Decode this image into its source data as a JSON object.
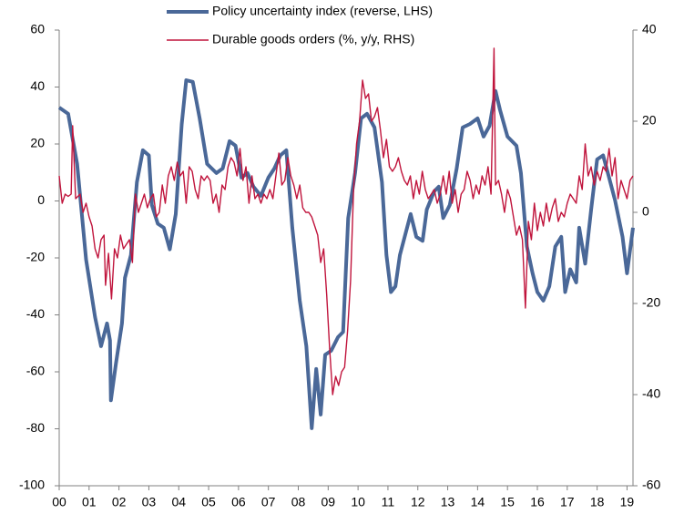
{
  "chart_data": {
    "type": "line",
    "xlim": [
      0,
      19.2
    ],
    "xticks": [
      {
        "value": 0,
        "label": "00"
      },
      {
        "value": 1,
        "label": "01"
      },
      {
        "value": 2,
        "label": "02"
      },
      {
        "value": 3,
        "label": "03"
      },
      {
        "value": 4,
        "label": "04"
      },
      {
        "value": 5,
        "label": "05"
      },
      {
        "value": 6,
        "label": "06"
      },
      {
        "value": 7,
        "label": "07"
      },
      {
        "value": 8,
        "label": "08"
      },
      {
        "value": 9,
        "label": "09"
      },
      {
        "value": 10,
        "label": "10"
      },
      {
        "value": 11,
        "label": "11"
      },
      {
        "value": 12,
        "label": "12"
      },
      {
        "value": 13,
        "label": "13"
      },
      {
        "value": 14,
        "label": "14"
      },
      {
        "value": 15,
        "label": "15"
      },
      {
        "value": 16,
        "label": "16"
      },
      {
        "value": 17,
        "label": "17"
      },
      {
        "value": 18,
        "label": "18"
      },
      {
        "value": 19,
        "label": "19"
      }
    ],
    "ylim": [
      -100,
      60
    ],
    "yticks": [
      -100,
      -80,
      -60,
      -40,
      -20,
      0,
      20,
      40,
      60
    ],
    "y2lim": [
      -60,
      40
    ],
    "y2ticks": [
      -60,
      -40,
      -20,
      0,
      20,
      40
    ],
    "legend": "top",
    "series": [
      {
        "name": "Policy uncertainty index (reverse, LHS)",
        "color": "#4a6898",
        "axis": "y",
        "x": [
          0,
          0.3,
          0.6,
          0.9,
          1.2,
          1.4,
          1.6,
          1.7,
          1.73,
          1.9,
          2.1,
          2.2,
          2.4,
          2.6,
          2.8,
          3.0,
          3.1,
          3.3,
          3.5,
          3.7,
          3.9,
          4.1,
          4.25,
          4.47,
          4.7,
          4.95,
          5.26,
          5.47,
          5.7,
          5.9,
          6.1,
          6.3,
          6.5,
          6.75,
          7.0,
          7.2,
          7.4,
          7.6,
          7.8,
          8.05,
          8.27,
          8.45,
          8.6,
          8.75,
          8.9,
          9.1,
          9.33,
          9.5,
          9.67,
          9.9,
          10.1,
          10.3,
          10.55,
          10.8,
          10.95,
          11.1,
          11.25,
          11.4,
          11.6,
          11.76,
          11.95,
          12.16,
          12.3,
          12.55,
          12.7,
          12.85,
          13.07,
          13.3,
          13.5,
          13.74,
          14.0,
          14.2,
          14.4,
          14.6,
          14.75,
          15.0,
          15.3,
          15.45,
          15.65,
          15.84,
          16.0,
          16.2,
          16.4,
          16.6,
          16.8,
          16.93,
          17.1,
          17.3,
          17.4,
          17.6,
          17.8,
          18.0,
          18.2,
          18.4,
          18.6,
          18.85,
          19.0,
          19.2
        ],
        "values": [
          32.8,
          30.6,
          13,
          -20.6,
          -40.8,
          -51,
          -43,
          -49,
          -70,
          -57,
          -43,
          -27,
          -19,
          6.6,
          17.8,
          16,
          -1.4,
          -8,
          -9.4,
          -17,
          -4.6,
          27,
          42.4,
          41.8,
          29,
          13,
          9.8,
          11.4,
          21,
          19.4,
          8.2,
          9.8,
          5,
          1.8,
          8.2,
          11.4,
          16,
          17.8,
          -9.4,
          -35,
          -51,
          -79.8,
          -59,
          -75,
          -54,
          -52.6,
          -47.8,
          -46,
          -6,
          9.8,
          29,
          30.6,
          25.8,
          6.6,
          -19,
          -32,
          -30,
          -19,
          -11,
          -4.6,
          -12.6,
          -14,
          -3,
          3.4,
          5,
          -6,
          -1.4,
          11.4,
          25.8,
          27,
          29,
          22.6,
          26.4,
          38.6,
          32,
          22.6,
          19.4,
          9.8,
          -16,
          -25.4,
          -32,
          -35,
          -30,
          -16,
          -12.6,
          -32,
          -24,
          -28.6,
          -9.4,
          -22,
          -3,
          14.6,
          16,
          8.2,
          0.2,
          -12.6,
          -25.4,
          -9.4
        ]
      },
      {
        "name": "Durable goods orders (%, y/y, RHS)",
        "color": "#c0143c",
        "axis": "y2",
        "x": [
          0,
          0.1,
          0.2,
          0.3,
          0.4,
          0.45,
          0.55,
          0.7,
          0.8,
          0.9,
          1.0,
          1.1,
          1.2,
          1.3,
          1.4,
          1.5,
          1.55,
          1.65,
          1.75,
          1.85,
          1.95,
          2.05,
          2.15,
          2.25,
          2.35,
          2.45,
          2.55,
          2.65,
          2.75,
          2.85,
          2.95,
          3.05,
          3.15,
          3.25,
          3.35,
          3.45,
          3.55,
          3.65,
          3.75,
          3.85,
          3.95,
          4.05,
          4.15,
          4.25,
          4.35,
          4.45,
          4.55,
          4.65,
          4.75,
          4.85,
          4.95,
          5.05,
          5.15,
          5.25,
          5.35,
          5.45,
          5.55,
          5.65,
          5.75,
          5.85,
          5.95,
          6.05,
          6.15,
          6.25,
          6.35,
          6.45,
          6.55,
          6.65,
          6.75,
          6.85,
          6.95,
          7.05,
          7.15,
          7.25,
          7.35,
          7.45,
          7.55,
          7.65,
          7.75,
          7.85,
          7.95,
          8.05,
          8.15,
          8.25,
          8.35,
          8.45,
          8.55,
          8.65,
          8.75,
          8.85,
          8.95,
          9.05,
          9.15,
          9.25,
          9.35,
          9.45,
          9.55,
          9.65,
          9.75,
          9.85,
          9.95,
          10.05,
          10.15,
          10.25,
          10.35,
          10.45,
          10.55,
          10.65,
          10.75,
          10.85,
          10.95,
          11.05,
          11.15,
          11.25,
          11.35,
          11.45,
          11.55,
          11.65,
          11.75,
          11.85,
          11.95,
          12.05,
          12.15,
          12.25,
          12.35,
          12.45,
          12.55,
          12.65,
          12.75,
          12.85,
          12.95,
          13.05,
          13.15,
          13.25,
          13.35,
          13.45,
          13.55,
          13.65,
          13.75,
          13.85,
          13.95,
          14.05,
          14.15,
          14.25,
          14.35,
          14.45,
          14.55,
          14.6,
          14.7,
          14.8,
          14.9,
          15.0,
          15.1,
          15.2,
          15.3,
          15.4,
          15.5,
          15.6,
          15.7,
          15.8,
          15.9,
          16.0,
          16.1,
          16.2,
          16.3,
          16.4,
          16.5,
          16.6,
          16.7,
          16.8,
          16.9,
          17.0,
          17.1,
          17.2,
          17.3,
          17.4,
          17.5,
          17.6,
          17.7,
          17.8,
          17.9,
          18.0,
          18.1,
          18.2,
          18.3,
          18.4,
          18.5,
          18.6,
          18.7,
          18.8,
          18.9,
          19.0,
          19.1,
          19.2
        ],
        "values": [
          8,
          2,
          4,
          3.5,
          4,
          19,
          3,
          4,
          0,
          2,
          -1,
          -3,
          -8,
          -10,
          -6,
          -5,
          -16,
          -9,
          -19,
          -8,
          -10,
          -5,
          -8,
          -7,
          -6,
          -11,
          4,
          0,
          2,
          4,
          1,
          3,
          4,
          -1,
          0,
          6,
          2,
          8,
          10,
          7,
          11,
          8,
          9,
          2,
          10,
          9,
          5,
          3,
          8,
          7,
          8,
          7,
          2,
          4,
          0,
          6,
          5,
          10,
          12,
          11,
          8,
          14,
          7,
          10,
          2,
          8,
          3,
          4,
          2,
          4,
          3,
          5,
          3,
          8,
          13,
          6,
          7,
          12,
          8,
          6,
          3,
          6,
          1,
          0,
          0,
          -1,
          -3,
          -5,
          -11,
          -8,
          -18,
          -30,
          -40,
          -36,
          -38,
          -35,
          -34,
          -26,
          -15,
          5,
          15,
          20,
          29,
          25,
          26,
          20,
          21,
          23,
          18,
          12,
          16,
          10,
          9,
          10,
          12,
          9,
          7,
          6,
          8,
          3,
          7,
          4,
          9,
          5,
          3,
          4,
          5,
          2,
          4,
          8,
          4,
          9,
          2,
          5,
          0,
          4,
          5,
          9,
          7,
          3,
          6,
          4,
          8,
          6,
          10,
          4,
          36,
          6,
          7,
          4,
          0,
          5,
          3,
          -1,
          -5,
          -3,
          -6,
          -21,
          -2,
          -6,
          2,
          -4,
          0,
          -3,
          2,
          -2,
          1,
          3,
          -2,
          0,
          -1,
          2,
          4,
          3,
          2,
          8,
          5,
          15,
          8,
          10,
          6,
          9,
          7,
          10,
          9,
          14,
          8,
          12,
          3,
          7,
          5,
          3,
          7,
          8
        ]
      }
    ]
  }
}
